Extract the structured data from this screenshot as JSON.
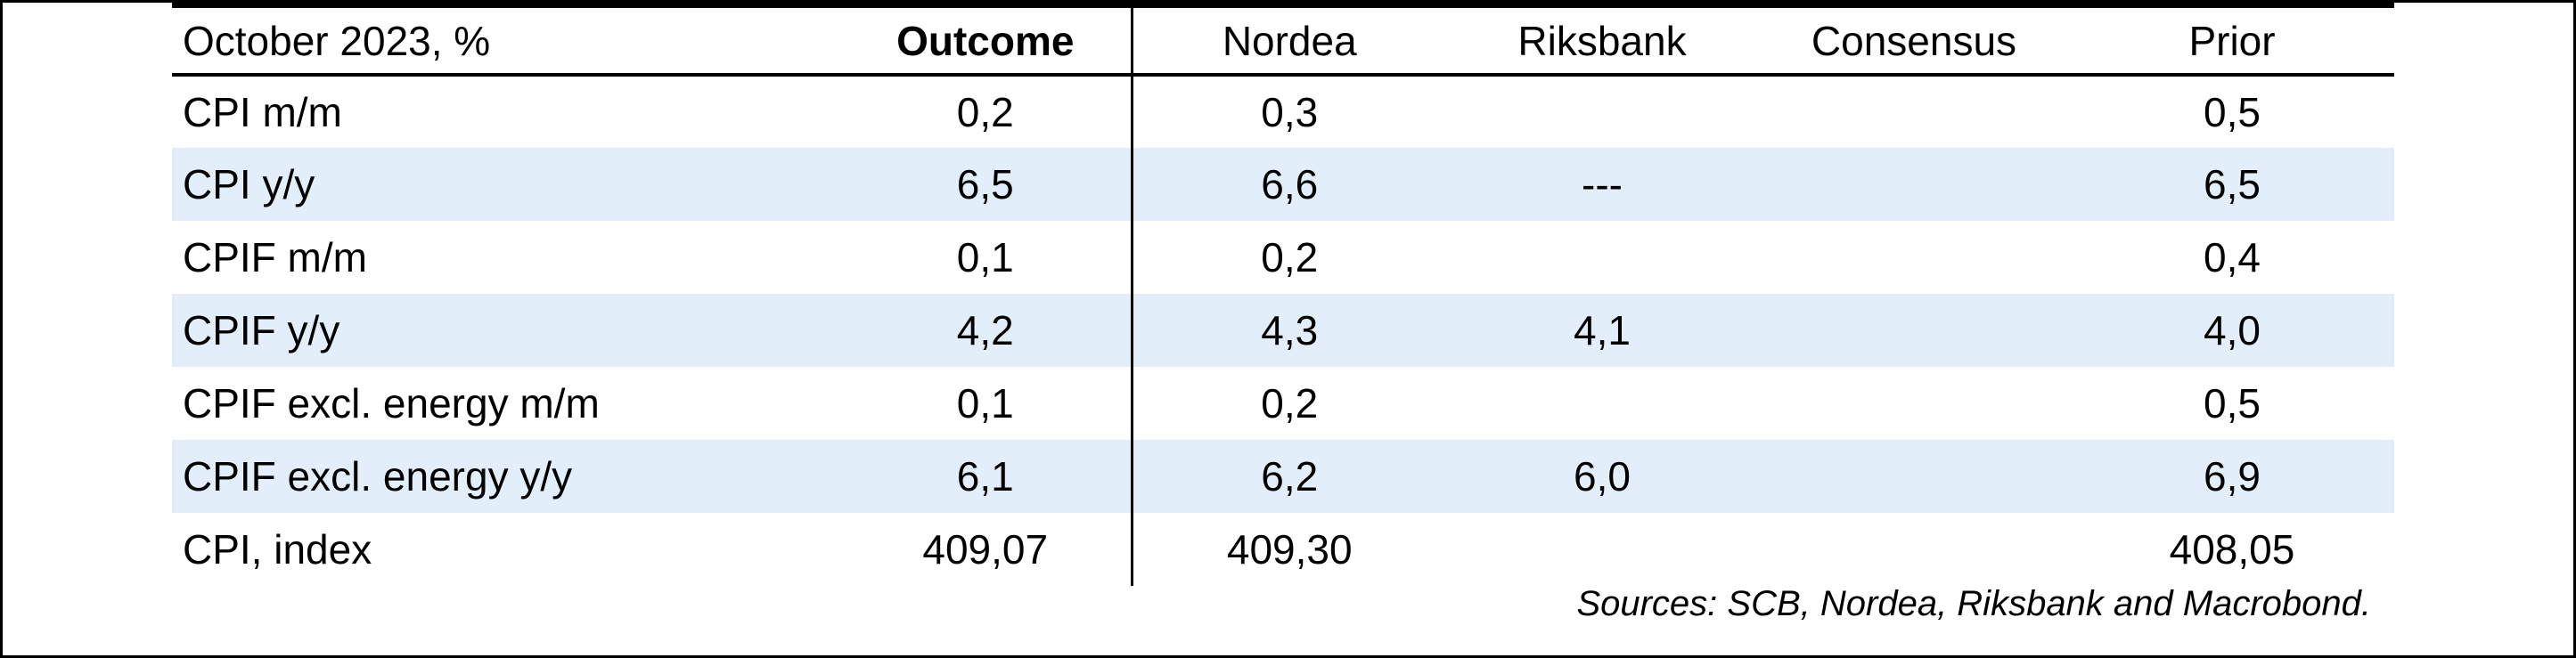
{
  "chart_data": {
    "type": "table",
    "title": "October 2023, %",
    "columns": [
      "October 2023, %",
      "Outcome",
      "Nordea",
      "Riksbank",
      "Consensus",
      "Prior"
    ],
    "rows": [
      {
        "label": "CPI m/m",
        "outcome": "0,2",
        "nordea": "0,3",
        "riksbank": "",
        "consensus": "",
        "prior": "0,5"
      },
      {
        "label": "CPI y/y",
        "outcome": "6,5",
        "nordea": "6,6",
        "riksbank": "---",
        "consensus": "",
        "prior": "6,5"
      },
      {
        "label": "CPIF m/m",
        "outcome": "0,1",
        "nordea": "0,2",
        "riksbank": "",
        "consensus": "",
        "prior": "0,4"
      },
      {
        "label": "CPIF y/y",
        "outcome": "4,2",
        "nordea": "4,3",
        "riksbank": "4,1",
        "consensus": "",
        "prior": "4,0"
      },
      {
        "label": "CPIF excl. energy m/m",
        "outcome": "0,1",
        "nordea": "0,2",
        "riksbank": "",
        "consensus": "",
        "prior": "0,5"
      },
      {
        "label": "CPIF excl. energy y/y",
        "outcome": "6,1",
        "nordea": "6,2",
        "riksbank": "6,0",
        "consensus": "",
        "prior": "6,9"
      },
      {
        "label": "CPI, index",
        "outcome": "409,07",
        "nordea": "409,30",
        "riksbank": "",
        "consensus": "",
        "prior": "408,05"
      }
    ],
    "source_note": "Sources: SCB, Nordea, Riksbank and Macrobond.",
    "styling": {
      "highlighted_row_indices": [
        1,
        3,
        5
      ],
      "bold_row_indices": [
        3,
        5
      ],
      "highlight_color": "#e2effb",
      "border_color": "#000000",
      "text_color": "#000000",
      "background_color": "#ffffff"
    }
  }
}
